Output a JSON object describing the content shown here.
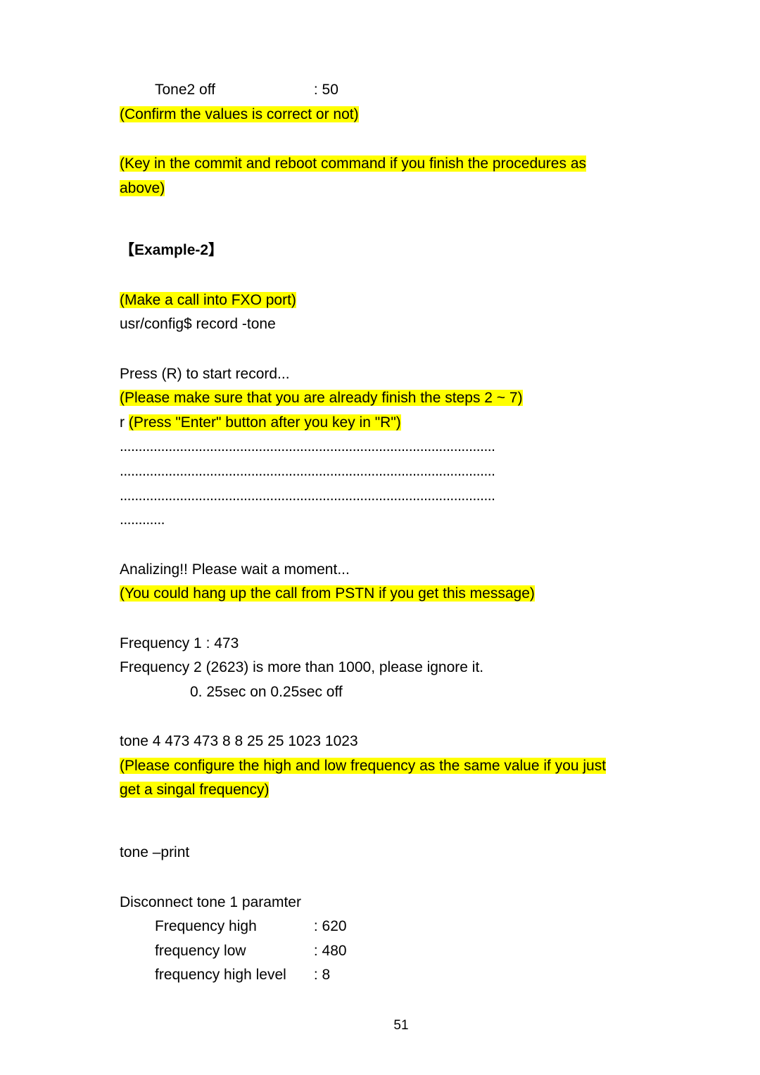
{
  "line1_left": "Tone2 off",
  "line1_right": ": 50",
  "confirm_note": "(Confirm the values is correct or not)",
  "reboot_note_l1": "(Key in the commit and reboot command if you finish the procedures as ",
  "reboot_note_l2": "above)",
  "example_title": "【Example-2】",
  "make_call_note": "(Make a call into FXO port)",
  "record_cmd": "usr/config$ record -tone",
  "press_r": "Press (R) to start record...",
  "please_sure": "(Please make sure that you are already finish the steps 2 ~ 7)",
  "r_prefix": "r   ",
  "press_enter": "(Press \"Enter\" button after you key in \"R\")",
  "dots_long": "....................................................................................................",
  "dots_short": "............",
  "analizing": "Analizing!! Please wait a moment...",
  "hangup_note": "(You could hang up the call from PSTN if you get this message)",
  "freq1": "Frequency 1 : 473",
  "freq2": "Frequency 2 (2623) is more than 1000, please ignore it.",
  "timing": "0. 25sec on 0.25sec off",
  "tone_cmd": "tone 4 473 473 8 8 25 25 1023 1023",
  "config_note_l1": " (Please configure the high and low frequency as the same value if you just",
  "config_note_l2": "get a singal frequency)",
  "tone_print": "tone –print",
  "disc_header": "Disconnect tone 1 paramter",
  "rows": [
    {
      "label": "Frequency high",
      "val": ": 620"
    },
    {
      "label": "frequency low",
      "val": ": 480"
    },
    {
      "label": "frequency high level",
      "val": ": 8"
    }
  ],
  "page_no": "51"
}
